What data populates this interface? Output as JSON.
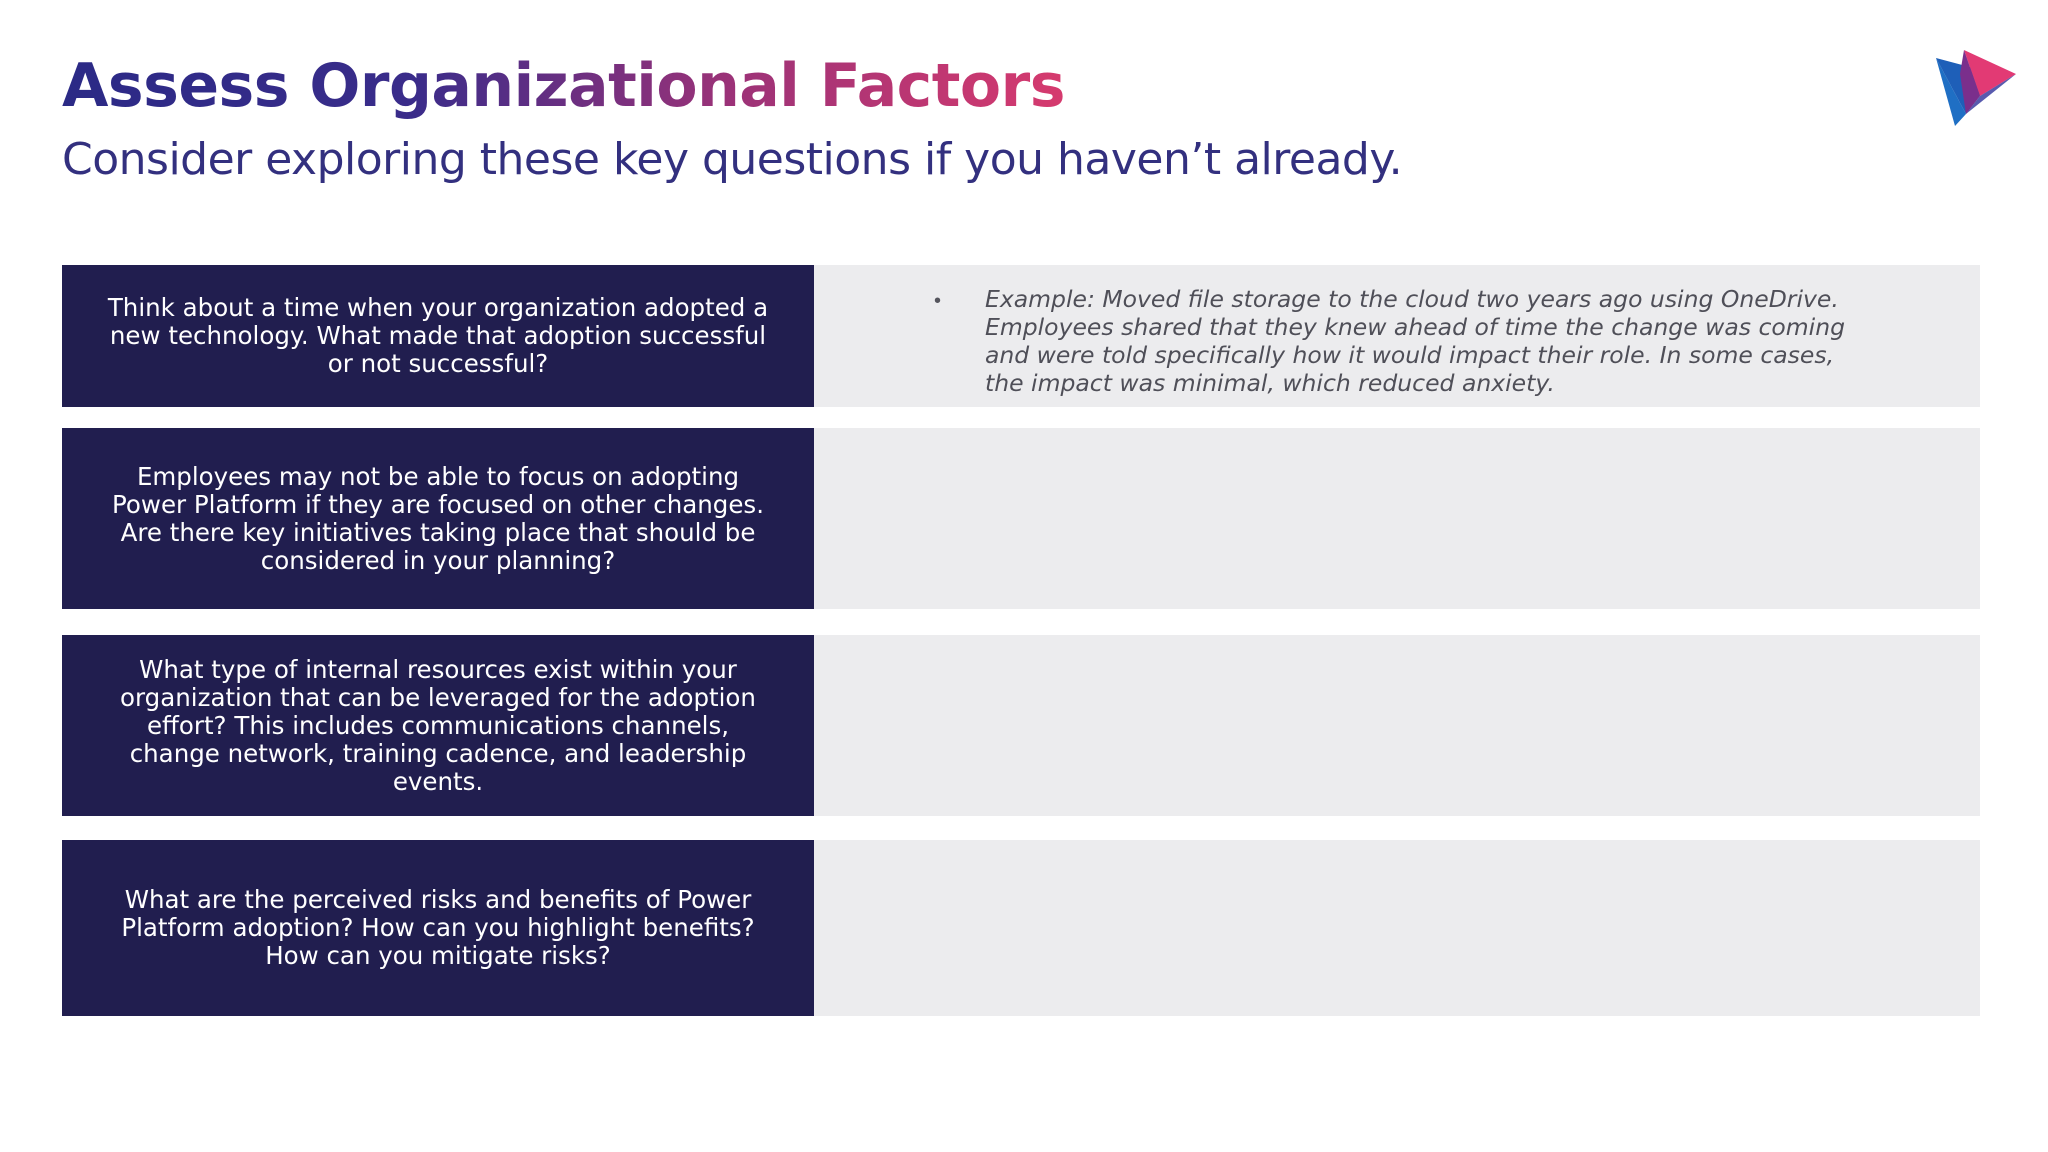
{
  "slide": {
    "title": "Assess Organizational Factors",
    "subtitle": "Consider exploring these key questions if you haven’t already.",
    "logo_icon": "play-triangle-logo-icon",
    "colors": {
      "title_start": "#2b2a86",
      "title_end": "#d63a6e",
      "question_bg": "#211e4f",
      "answer_bg": "#ececee"
    }
  },
  "rows": [
    {
      "question": "Think about a time when your organization adopted a new technology. What made that adoption successful or not successful?",
      "answer": "Example: Moved file storage to the cloud two years ago using OneDrive. Employees shared that they knew ahead of time the change was coming and were told specifically how it would impact their role. In some cases, the impact was minimal, which reduced anxiety.",
      "bullet": "•"
    },
    {
      "question": "Employees may not be able to focus on adopting Power Platform if they are focused on other changes. Are there key initiatives taking place that should be considered in your planning?",
      "answer": ""
    },
    {
      "question": "What type of internal resources exist within your organization that can be leveraged for the adoption effort? This includes communications channels, change network, training cadence, and leadership events.",
      "answer": ""
    },
    {
      "question": "What are the perceived risks and benefits of Power Platform adoption? How can you highlight benefits? How can you mitigate risks?",
      "answer": ""
    }
  ]
}
